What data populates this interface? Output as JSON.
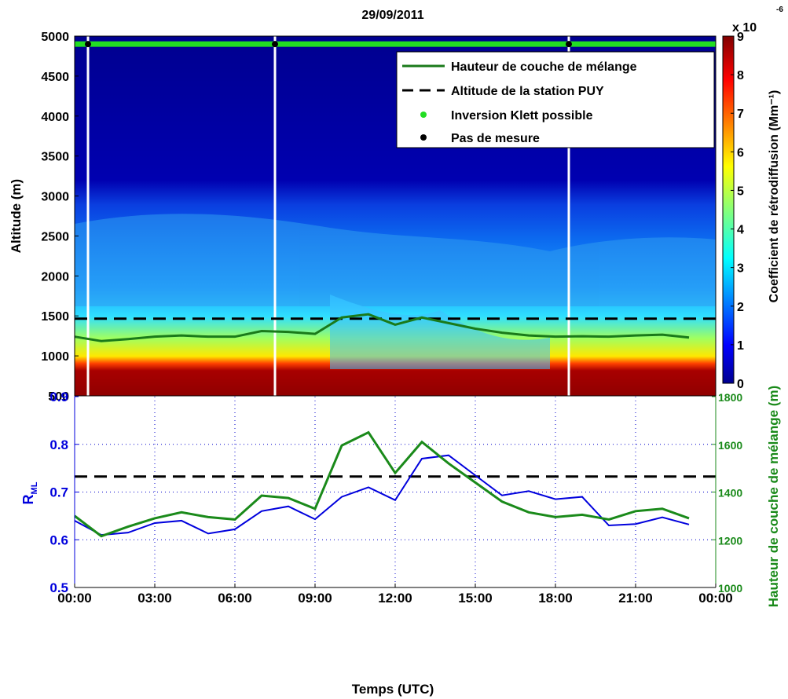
{
  "chart_data": [
    {
      "type": "heatmap",
      "title": "29/09/2011",
      "ylabel": "Altitude (m)",
      "ylim": [
        500,
        5000
      ],
      "yticks": [
        "500",
        "1000",
        "1500",
        "2000",
        "2500",
        "3000",
        "3500",
        "4000",
        "4500",
        "5000"
      ],
      "colorbar": {
        "label": "Coefficient de rétrodiffusion (Mm⁻¹)",
        "multiplier": "x 10",
        "exponent": "-6",
        "range": [
          0,
          9
        ],
        "ticks": [
          "0",
          "1",
          "2",
          "3",
          "4",
          "5",
          "6",
          "7",
          "8",
          "9"
        ],
        "colormap": "jet"
      },
      "legend": {
        "placement": "top-right",
        "entries": [
          {
            "label": "Hauteur de couche de mélange",
            "style": "solid-line",
            "color": "#1a7a1a"
          },
          {
            "label": "Altitude de la station PUY",
            "style": "dashed-line",
            "color": "#000000"
          },
          {
            "label": "Inversion Klett possible",
            "style": "marker",
            "color": "#22dd22"
          },
          {
            "label": "Pas de mesure",
            "style": "marker",
            "color": "#000000"
          }
        ]
      },
      "station_altitude": 1465,
      "mixing_layer": {
        "x_hours": [
          0,
          1,
          2,
          3,
          4,
          5,
          6,
          7,
          8,
          9,
          10,
          11,
          12,
          13,
          14,
          15,
          16,
          17,
          18,
          19,
          20,
          21,
          22,
          23
        ],
        "values": [
          1240,
          1185,
          1210,
          1240,
          1255,
          1240,
          1240,
          1310,
          1300,
          1275,
          1480,
          1520,
          1390,
          1480,
          1410,
          1340,
          1290,
          1255,
          1240,
          1245,
          1240,
          1255,
          1265,
          1230
        ]
      },
      "no_measurement_hours": [
        0.5,
        7.5,
        18.5
      ],
      "klett_possible": "green markers along 5000 m across the whole day"
    },
    {
      "type": "line",
      "xlabel": "Temps (UTC)",
      "xticks": [
        "00:00",
        "03:00",
        "06:00",
        "09:00",
        "12:00",
        "15:00",
        "18:00",
        "21:00",
        "00:00"
      ],
      "grid": true,
      "left_axis": {
        "label": "R",
        "label_sub": "ML",
        "range": [
          0.5,
          0.9
        ],
        "ticks": [
          "0.5",
          "0.6",
          "0.7",
          "0.8",
          "0.9"
        ],
        "color": "#0000dd"
      },
      "right_axis": {
        "label": "Hauteur de couche de mélange (m)",
        "range": [
          1000,
          1800
        ],
        "ticks": [
          "1000",
          "1200",
          "1400",
          "1600",
          "1800"
        ],
        "color": "#1a8a1a"
      },
      "series": [
        {
          "name": "R_ML",
          "axis": "left",
          "color": "#0000dd",
          "x_hours": [
            0,
            1,
            2,
            3,
            4,
            5,
            6,
            7,
            8,
            9,
            10,
            11,
            12,
            13,
            14,
            15,
            16,
            17,
            18,
            19,
            20,
            21,
            22,
            23
          ],
          "values": [
            0.64,
            0.61,
            0.615,
            0.635,
            0.64,
            0.613,
            0.622,
            0.66,
            0.67,
            0.643,
            0.69,
            0.71,
            0.683,
            0.77,
            0.777,
            0.735,
            0.693,
            0.702,
            0.685,
            0.69,
            0.63,
            0.633,
            0.647,
            0.632
          ]
        },
        {
          "name": "Hauteur de couche de mélange",
          "axis": "right",
          "color": "#1a8a1a",
          "x_hours": [
            0,
            1,
            2,
            3,
            4,
            5,
            6,
            7,
            8,
            9,
            10,
            11,
            12,
            13,
            14,
            15,
            16,
            17,
            18,
            19,
            20,
            21,
            22,
            23
          ],
          "values": [
            1300,
            1215,
            1255,
            1290,
            1315,
            1295,
            1285,
            1385,
            1375,
            1330,
            1595,
            1650,
            1480,
            1610,
            1520,
            1440,
            1360,
            1315,
            1295,
            1305,
            1285,
            1320,
            1330,
            1290
          ]
        }
      ],
      "station_altitude": 1465
    }
  ]
}
